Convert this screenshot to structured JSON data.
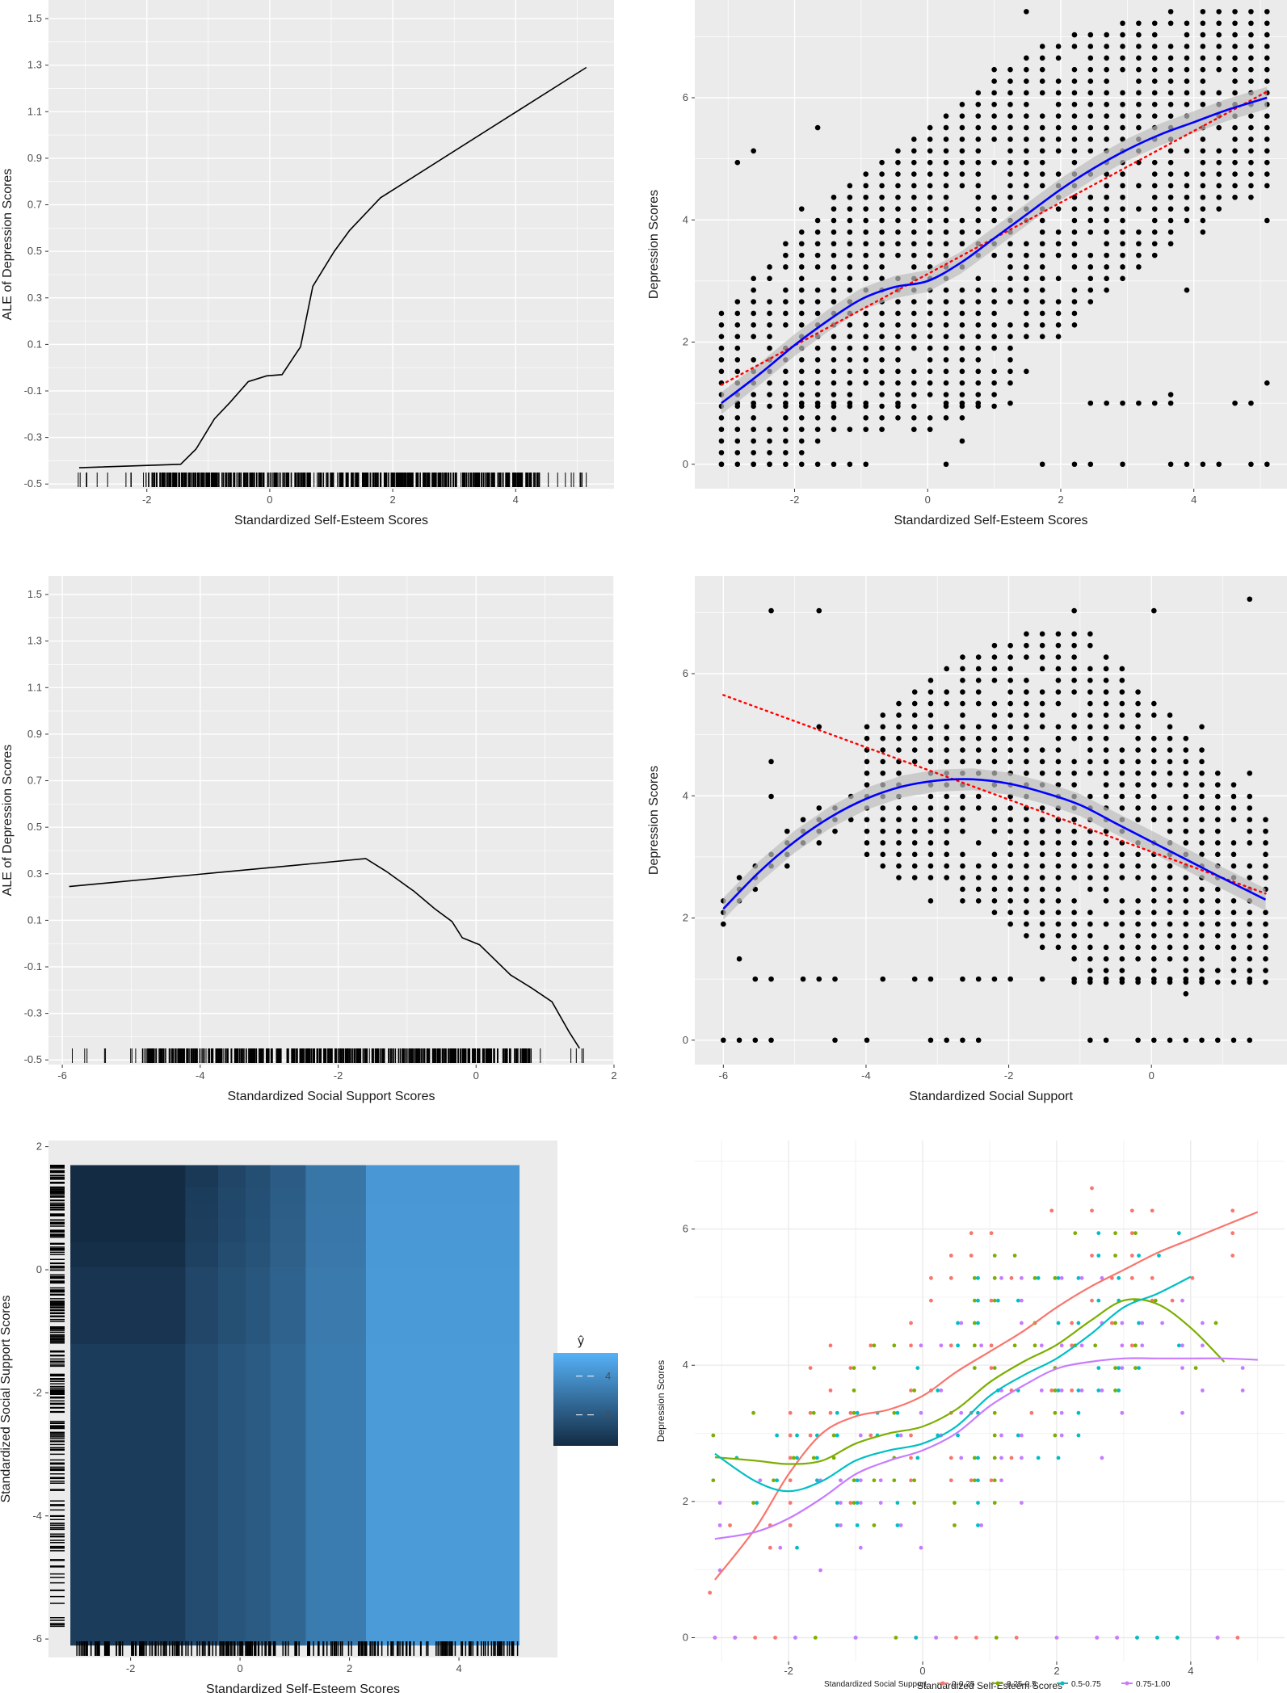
{
  "colors": {
    "panel_bg": "#ebebeb",
    "grid": "#ffffff",
    "ale_line": "#000000",
    "points": "#000000",
    "smooth": "#0000ff",
    "linear_fit": "#ff0000",
    "ci_band": "#bdbdbd",
    "heat_low": "#132b43",
    "heat_high": "#56b1f7",
    "group_colors": [
      "#f8766d",
      "#7cae00",
      "#00bfc4",
      "#c77cff"
    ]
  },
  "chart_data": [
    {
      "id": "ale_self_esteem",
      "type": "line",
      "xlabel": "Standardized Self-Esteem Scores",
      "ylabel": "ALE of Depression Scores",
      "xlim": [
        -3.6,
        5.6
      ],
      "ylim": [
        -0.52,
        1.58
      ],
      "x_ticks": [
        -2,
        0,
        2,
        4
      ],
      "y_ticks": [
        -0.5,
        -0.3,
        -0.1,
        0.1,
        0.3,
        0.5,
        0.7,
        0.9,
        1.1,
        1.3,
        1.5
      ],
      "y_tick_labels": [
        "-0.5",
        "-0.3",
        "-0.1",
        "0.1",
        "0.3",
        "0.5",
        "0.7",
        "0.9",
        "1.1",
        "1.3",
        "1.5"
      ],
      "grid": true,
      "x": [
        -3.1,
        -1.45,
        -1.2,
        -0.9,
        -0.65,
        -0.35,
        -0.05,
        0.2,
        0.5,
        0.7,
        1.05,
        1.3,
        1.8,
        5.15
      ],
      "y": [
        -0.43,
        -0.415,
        -0.35,
        -0.22,
        -0.15,
        -0.06,
        -0.035,
        -0.03,
        0.09,
        0.35,
        0.5,
        0.59,
        0.73,
        1.29
      ],
      "rug": "dense"
    },
    {
      "id": "scatter_self_esteem",
      "type": "scatter",
      "xlabel": "Standardized Self-Esteem Scores",
      "ylabel": "Depression Scores",
      "xlim": [
        -3.5,
        5.4
      ],
      "ylim": [
        -0.4,
        7.6
      ],
      "x_ticks": [
        -2,
        0,
        2,
        4
      ],
      "y_ticks": [
        0,
        2,
        4,
        6
      ],
      "grid": true,
      "smooth": {
        "x": [
          -3.1,
          -2.5,
          -2.0,
          -1.5,
          -1.0,
          -0.5,
          0.0,
          0.5,
          1.0,
          1.5,
          2.0,
          2.5,
          3.0,
          3.5,
          4.0,
          4.5,
          5.1
        ],
        "y": [
          1.0,
          1.5,
          1.95,
          2.35,
          2.7,
          2.9,
          3.0,
          3.3,
          3.7,
          4.1,
          4.5,
          4.85,
          5.15,
          5.4,
          5.6,
          5.8,
          6.0
        ]
      },
      "linear": {
        "x": [
          -3.1,
          5.1
        ],
        "y": [
          1.3,
          6.1
        ]
      }
    },
    {
      "id": "ale_social_support",
      "type": "line",
      "xlabel": "Standardized Social Support Scores",
      "ylabel": "ALE of Depression Scores",
      "xlim": [
        -6.2,
        2.0
      ],
      "ylim": [
        -0.52,
        1.58
      ],
      "x_ticks": [
        -6,
        -4,
        -2,
        0,
        2
      ],
      "y_ticks": [
        -0.5,
        -0.3,
        -0.1,
        0.1,
        0.3,
        0.5,
        0.7,
        0.9,
        1.1,
        1.3,
        1.5
      ],
      "y_tick_labels": [
        "-0.5",
        "-0.3",
        "-0.1",
        "0.1",
        "0.3",
        "0.5",
        "0.7",
        "0.9",
        "1.1",
        "1.3",
        "1.5"
      ],
      "grid": true,
      "x": [
        -5.9,
        -1.6,
        -1.3,
        -0.9,
        -0.6,
        -0.35,
        -0.2,
        0.05,
        0.5,
        0.8,
        1.1,
        1.35,
        1.5
      ],
      "y": [
        0.245,
        0.365,
        0.31,
        0.225,
        0.15,
        0.095,
        0.025,
        -0.005,
        -0.135,
        -0.19,
        -0.25,
        -0.38,
        -0.45
      ],
      "rug": "dense"
    },
    {
      "id": "scatter_social_support",
      "type": "scatter",
      "xlabel": "Standardized Social Support",
      "ylabel": "Depression Scores",
      "xlim": [
        -6.4,
        1.9
      ],
      "ylim": [
        -0.4,
        7.6
      ],
      "x_ticks": [
        -6,
        -4,
        -2,
        0
      ],
      "y_ticks": [
        0,
        2,
        4,
        6
      ],
      "grid": true,
      "smooth": {
        "x": [
          -6.0,
          -5.5,
          -5.0,
          -4.5,
          -4.0,
          -3.5,
          -3.0,
          -2.5,
          -2.0,
          -1.5,
          -1.0,
          -0.5,
          0.0,
          0.5,
          1.0,
          1.6
        ],
        "y": [
          2.15,
          2.75,
          3.25,
          3.65,
          3.95,
          4.15,
          4.25,
          4.27,
          4.2,
          4.05,
          3.85,
          3.55,
          3.25,
          2.95,
          2.65,
          2.3
        ]
      },
      "linear": {
        "x": [
          -6.0,
          1.6
        ],
        "y": [
          5.65,
          2.4
        ]
      }
    },
    {
      "id": "heatmap_interaction",
      "type": "heatmap",
      "xlabel": "Standardized Self-Esteem Scores",
      "ylabel": "Standardized Social Support Scores",
      "xlim": [
        -3.5,
        5.8
      ],
      "ylim": [
        -6.3,
        2.1
      ],
      "x_ticks": [
        -2,
        0,
        2,
        4
      ],
      "y_ticks": [
        -6,
        -4,
        -2,
        0,
        2
      ],
      "legend_title": "ŷ",
      "legend_ticks": [
        3,
        4
      ],
      "legend_range": [
        2.2,
        4.6
      ],
      "x_breaks": [
        -3.1,
        -1.0,
        -0.4,
        0.1,
        0.55,
        1.2,
        2.3,
        5.1
      ],
      "y_breaks": [
        -6.1,
        -1.2,
        0.05,
        0.45,
        0.85,
        1.1,
        1.35,
        1.7
      ],
      "col_values": [
        2.15,
        2.5,
        2.7,
        2.85,
        3.1,
        3.55,
        4.15
      ],
      "row_offsets": [
        0.35,
        0.22,
        0.12,
        0.06,
        0.02,
        0.0,
        -0.05
      ]
    },
    {
      "id": "grouped_scatter",
      "type": "scatter",
      "xlabel": "Standardized Self-Esteem Scores",
      "ylabel": "Depression Scores",
      "xlim": [
        -3.4,
        5.4
      ],
      "ylim": [
        -0.35,
        7.3
      ],
      "x_ticks": [
        -2,
        0,
        2,
        4
      ],
      "y_ticks": [
        0,
        2,
        4,
        6
      ],
      "grid": true,
      "legend_title": "Standardized Social Support",
      "legend_position": "bottom",
      "series": [
        {
          "name": "0-0.25",
          "x": [
            -3.1,
            -2.5,
            -2.0,
            -1.5,
            -1.0,
            -0.5,
            0.0,
            0.5,
            1.0,
            1.5,
            2.0,
            2.5,
            3.0,
            3.5,
            4.0,
            4.5,
            5.0
          ],
          "y": [
            0.85,
            1.6,
            2.4,
            3.0,
            3.25,
            3.35,
            3.55,
            3.9,
            4.2,
            4.5,
            4.85,
            5.15,
            5.4,
            5.65,
            5.85,
            6.05,
            6.25
          ]
        },
        {
          "name": "0.25-0.5",
          "x": [
            -3.1,
            -2.5,
            -2.0,
            -1.5,
            -1.0,
            -0.5,
            0.0,
            0.5,
            1.0,
            1.5,
            2.0,
            2.5,
            3.0,
            3.5,
            4.0,
            4.5
          ],
          "y": [
            2.65,
            2.6,
            2.55,
            2.6,
            2.85,
            3.0,
            3.1,
            3.35,
            3.75,
            4.05,
            4.3,
            4.65,
            4.95,
            4.9,
            4.55,
            4.05
          ]
        },
        {
          "name": "0.5-0.75",
          "x": [
            -3.1,
            -2.5,
            -2.0,
            -1.5,
            -1.0,
            -0.5,
            0.0,
            0.5,
            1.0,
            1.5,
            2.0,
            2.5,
            3.0,
            3.5,
            4.0
          ],
          "y": [
            2.7,
            2.3,
            2.15,
            2.3,
            2.6,
            2.75,
            2.85,
            3.1,
            3.55,
            3.85,
            4.1,
            4.45,
            4.85,
            5.05,
            5.3
          ]
        },
        {
          "name": "0.75-1.00",
          "x": [
            -3.1,
            -2.5,
            -2.0,
            -1.5,
            -1.0,
            -0.5,
            0.0,
            0.5,
            1.0,
            1.5,
            2.0,
            2.5,
            3.0,
            3.5,
            4.0,
            4.5,
            5.0
          ],
          "y": [
            1.45,
            1.55,
            1.75,
            2.05,
            2.4,
            2.6,
            2.75,
            3.0,
            3.4,
            3.7,
            3.95,
            4.05,
            4.1,
            4.1,
            4.1,
            4.1,
            4.08
          ]
        }
      ]
    }
  ]
}
